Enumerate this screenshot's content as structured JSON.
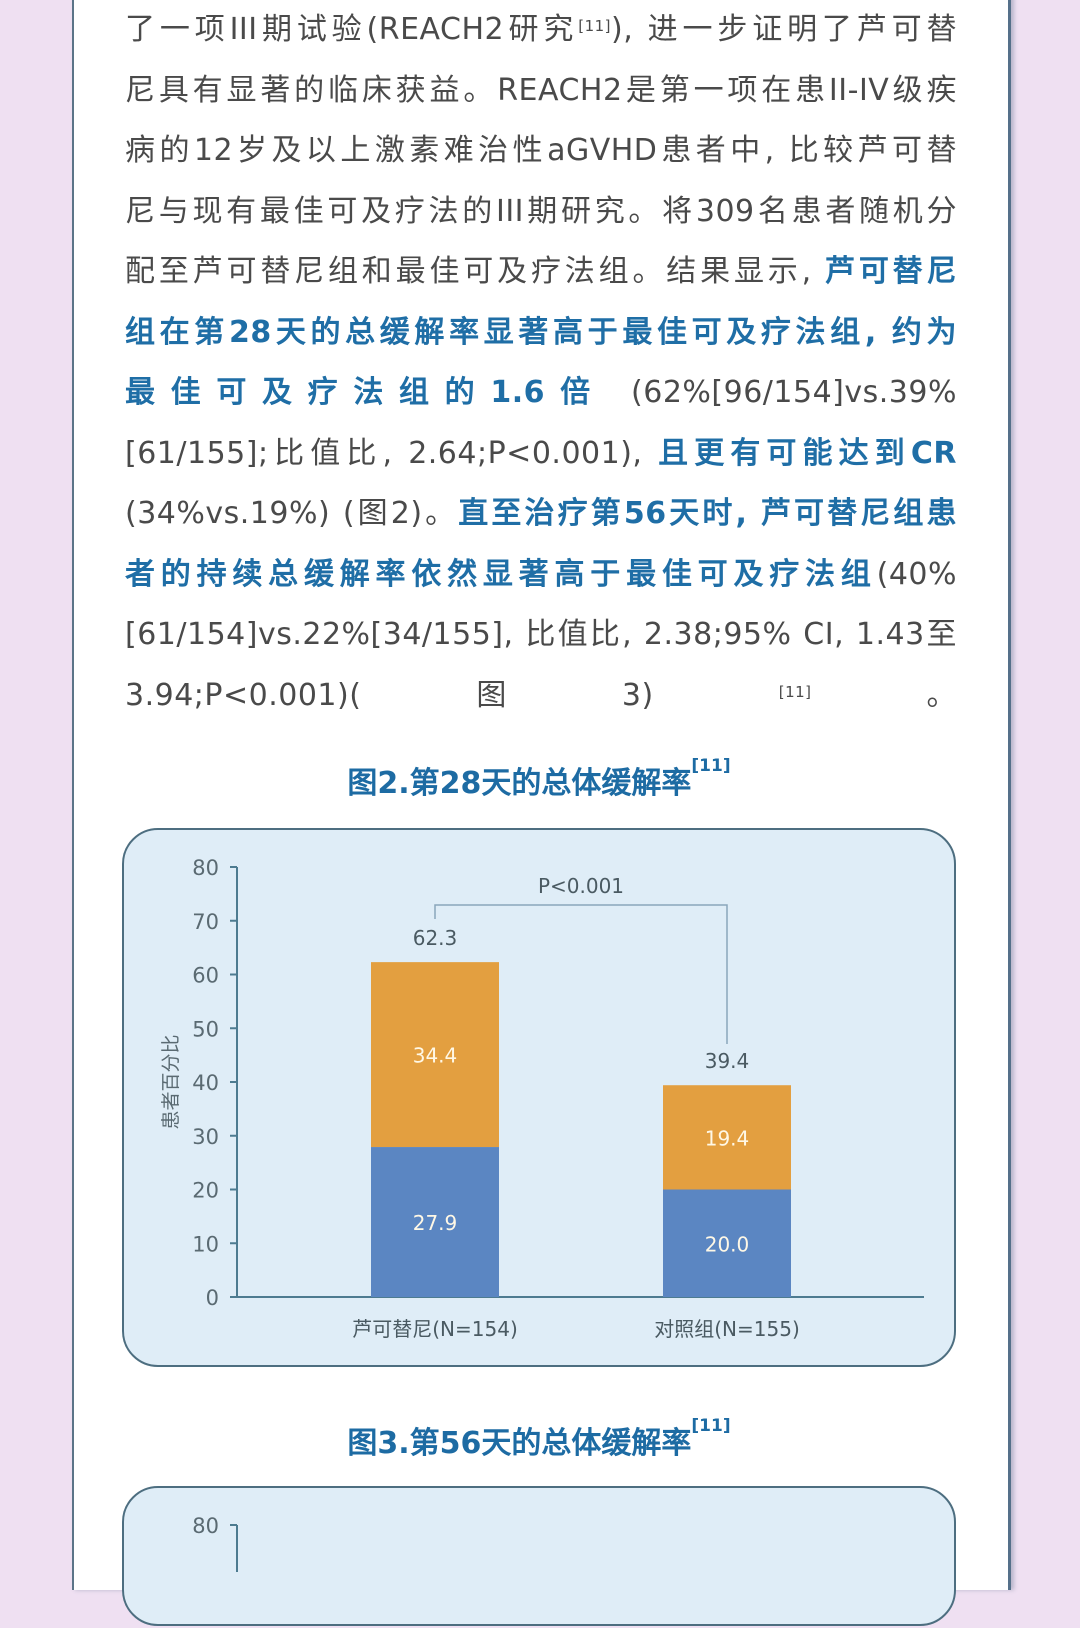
{
  "colors": {
    "page_bg": "#efe0f2",
    "card_bg": "#ffffff",
    "body_text": "#4a4a4a",
    "highlight_text": "#1f6ea6",
    "figure_title": "#1d6ba3",
    "chart_bg": "#dfedf7",
    "chart_border": "#4d6e80",
    "bar_cr": "#5b86c2",
    "bar_pr": "#e39f40",
    "axis": "#4d7b90"
  },
  "article": {
    "lines": [
      {
        "segments": [
          {
            "t": "了一项III期试验(REACH2研究"
          },
          {
            "t": "[11]",
            "sup": true
          },
          {
            "t": "), 进一步证明了芦可替"
          }
        ]
      },
      {
        "segments": [
          {
            "t": "尼具有显著的临床获益。REACH2是第一项在患II-IV级疾"
          }
        ]
      },
      {
        "segments": [
          {
            "t": "病的12岁及以上激素难治性aGVHD患者中, 比较芦可替"
          }
        ]
      },
      {
        "segments": [
          {
            "t": "尼与现有最佳可及疗法的III期研究。将309名患者随机分"
          }
        ]
      },
      {
        "segments": [
          {
            "t": "配至芦可替尼组和最佳可及疗法组。结果显示, "
          },
          {
            "t": "芦可替尼",
            "hl": true
          }
        ]
      },
      {
        "segments": [
          {
            "t": "组在第28天的总缓解率显著高于最佳可及疗法组, 约为",
            "hl": true
          }
        ]
      },
      {
        "segments": [
          {
            "t": "最佳可及疗法组的1.6倍",
            "hl": true
          },
          {
            "t": " (62%[96/154]vs.39%"
          }
        ]
      },
      {
        "segments": [
          {
            "t": "[61/155];比值比, 2.64;P<0.001), "
          },
          {
            "t": "且更有可能达到CR",
            "hl": true
          }
        ]
      },
      {
        "segments": [
          {
            "t": "(34%vs.19%) (图2)。"
          },
          {
            "t": "直至治疗第56天时, 芦可替尼组患",
            "hl": true
          }
        ]
      },
      {
        "segments": [
          {
            "t": "者的持续总缓解率依然显著高于最佳可及疗法组",
            "hl": true
          },
          {
            "t": "(40%"
          }
        ]
      },
      {
        "segments": [
          {
            "t": "[61/154]vs.22%[34/155], 比值比, 2.38;95% CI, 1.43至"
          }
        ]
      },
      {
        "segments": [
          {
            "t": "3.94;P<0.001)(图3) "
          },
          {
            "t": "[11]",
            "sup": true
          },
          {
            "t": "。"
          }
        ]
      }
    ]
  },
  "figure2": {
    "title": "图2.第28天的总体缓解率",
    "title_ref": "[11]"
  },
  "figure3": {
    "title": "图3.第56天的总体缓解率",
    "title_ref": "[11]",
    "visible_y_tick": "80"
  },
  "chart_data": [
    {
      "type": "bar",
      "stacked": true,
      "title": "图2.第28天的总体缓解率[11]",
      "xlabel": "",
      "ylabel": "患者百分比",
      "ylim": [
        0,
        80
      ],
      "yticks": [
        0,
        10,
        20,
        30,
        40,
        50,
        60,
        70,
        80
      ],
      "grid": false,
      "categories": [
        "芦可替尼(N=154)",
        "对照组(N=155)"
      ],
      "series": [
        {
          "name": "bottom segment (blue)",
          "color": "#5b86c2",
          "values": [
            27.9,
            20.0
          ]
        },
        {
          "name": "top segment (orange)",
          "color": "#e39f40",
          "values": [
            34.4,
            19.4
          ]
        }
      ],
      "totals": [
        62.3,
        39.4
      ],
      "annotations": [
        {
          "text": "P<0.001",
          "type": "significance-bracket",
          "between": [
            "芦可替尼(N=154)",
            "对照组(N=155)"
          ]
        }
      ]
    },
    {
      "type": "bar",
      "title": "图3.第56天的总体缓解率[11]",
      "ylim": [
        0,
        80
      ],
      "yticks_visible": [
        80
      ],
      "note": "chart truncated at bottom of screenshot"
    }
  ]
}
